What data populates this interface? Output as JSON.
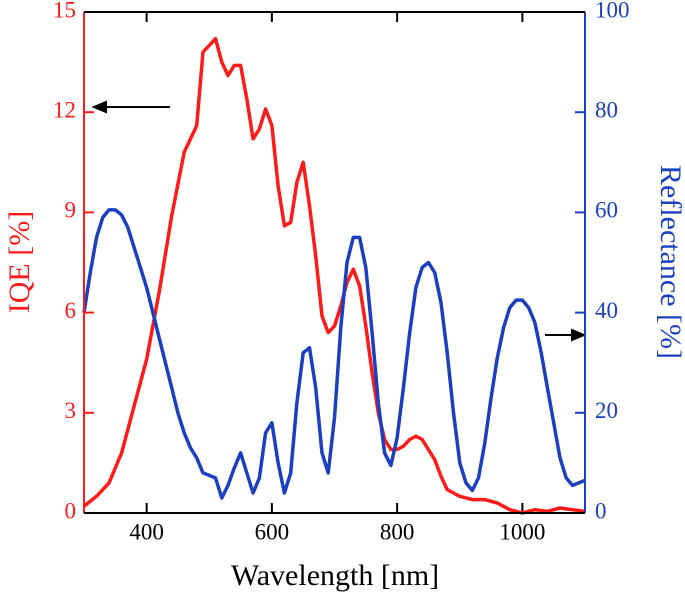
{
  "chart_data": {
    "type": "line",
    "xlabel": "Wavelength [nm]",
    "ylabel": "IQE [%]",
    "y2label": "Reflectance [%]",
    "xlim": [
      300,
      1100
    ],
    "xticks": [
      400,
      600,
      800,
      1000
    ],
    "ylim": [
      0,
      15
    ],
    "yticks": [
      0,
      3,
      6,
      9,
      12,
      15
    ],
    "y2lim": [
      0,
      100
    ],
    "y2ticks": [
      0,
      20,
      40,
      60,
      80,
      100
    ],
    "series": [
      {
        "name": "IQE",
        "color": "#ff1a1a",
        "x": [
          300,
          320,
          340,
          360,
          380,
          400,
          420,
          440,
          460,
          480,
          490,
          500,
          510,
          520,
          530,
          540,
          550,
          560,
          570,
          580,
          590,
          600,
          610,
          620,
          630,
          640,
          650,
          660,
          670,
          680,
          690,
          700,
          710,
          720,
          730,
          740,
          750,
          760,
          770,
          780,
          790,
          800,
          810,
          820,
          830,
          840,
          850,
          860,
          870,
          880,
          890,
          900,
          920,
          940,
          960,
          980,
          1000,
          1020,
          1040,
          1060,
          1080,
          1100
        ],
        "values": [
          0.2,
          0.5,
          0.9,
          1.8,
          3.2,
          4.6,
          6.6,
          8.9,
          10.8,
          11.6,
          13.8,
          14.0,
          14.2,
          13.5,
          13.1,
          13.4,
          13.4,
          12.4,
          11.2,
          11.5,
          12.1,
          11.6,
          9.8,
          8.6,
          8.7,
          9.9,
          10.5,
          9.2,
          7.7,
          5.9,
          5.4,
          5.6,
          6.2,
          6.9,
          7.3,
          6.8,
          5.6,
          4.2,
          3.0,
          2.2,
          1.9,
          1.9,
          2.0,
          2.2,
          2.3,
          2.2,
          1.9,
          1.6,
          1.1,
          0.7,
          0.6,
          0.5,
          0.4,
          0.4,
          0.3,
          0.1,
          0.0,
          0.1,
          0.05,
          0.15,
          0.1,
          0.05
        ]
      },
      {
        "name": "Reflectance",
        "color": "#1c3fc0",
        "axis": "y2",
        "x": [
          300,
          310,
          320,
          330,
          340,
          350,
          360,
          370,
          380,
          390,
          400,
          410,
          420,
          430,
          440,
          450,
          460,
          470,
          480,
          490,
          500,
          510,
          520,
          530,
          540,
          550,
          560,
          570,
          580,
          590,
          600,
          610,
          620,
          630,
          640,
          650,
          660,
          670,
          680,
          690,
          700,
          710,
          720,
          730,
          740,
          750,
          760,
          770,
          780,
          790,
          800,
          810,
          820,
          830,
          840,
          850,
          860,
          870,
          880,
          890,
          900,
          910,
          920,
          930,
          940,
          950,
          960,
          970,
          980,
          990,
          1000,
          1010,
          1020,
          1030,
          1040,
          1050,
          1060,
          1070,
          1080,
          1090,
          1100
        ],
        "values": [
          40,
          48,
          55,
          59,
          60.5,
          60.5,
          59.5,
          57,
          53,
          49,
          45,
          40,
          35,
          30,
          25,
          20,
          16,
          13,
          11,
          8,
          7.5,
          7,
          3,
          5.5,
          9,
          12,
          8,
          4,
          7,
          16,
          18,
          10,
          4,
          8,
          22,
          32,
          33,
          25,
          12,
          8,
          19,
          37,
          50,
          55,
          55,
          49,
          36,
          22,
          12,
          9.5,
          15,
          25,
          36,
          45,
          49,
          50,
          48,
          42,
          32,
          20,
          10,
          6,
          4.5,
          7,
          14,
          23,
          31,
          37,
          41,
          42.5,
          42.5,
          41,
          38,
          32,
          25,
          18,
          11,
          7,
          5.5,
          6,
          6.5
        ]
      }
    ]
  }
}
